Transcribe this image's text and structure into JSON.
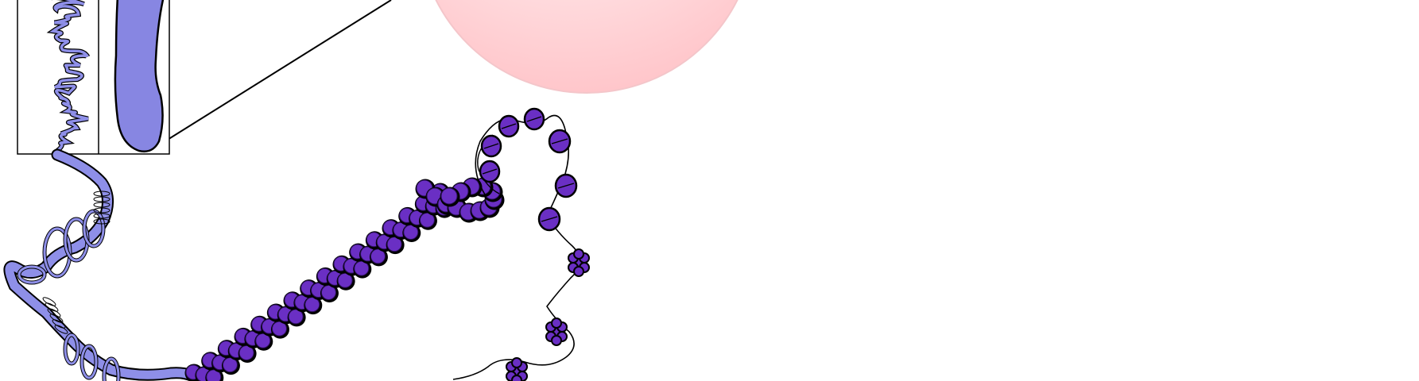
{
  "diagram": {
    "labels": []
  },
  "colors": {
    "chromatin_light": "#8e8fe8",
    "chromatid": "#8786e2",
    "nucleosome": "#6a2fc4",
    "nucleosome_dark": "#4e1f9e",
    "nucleus_pink": "#ffcdd2",
    "outline": "#000000"
  }
}
